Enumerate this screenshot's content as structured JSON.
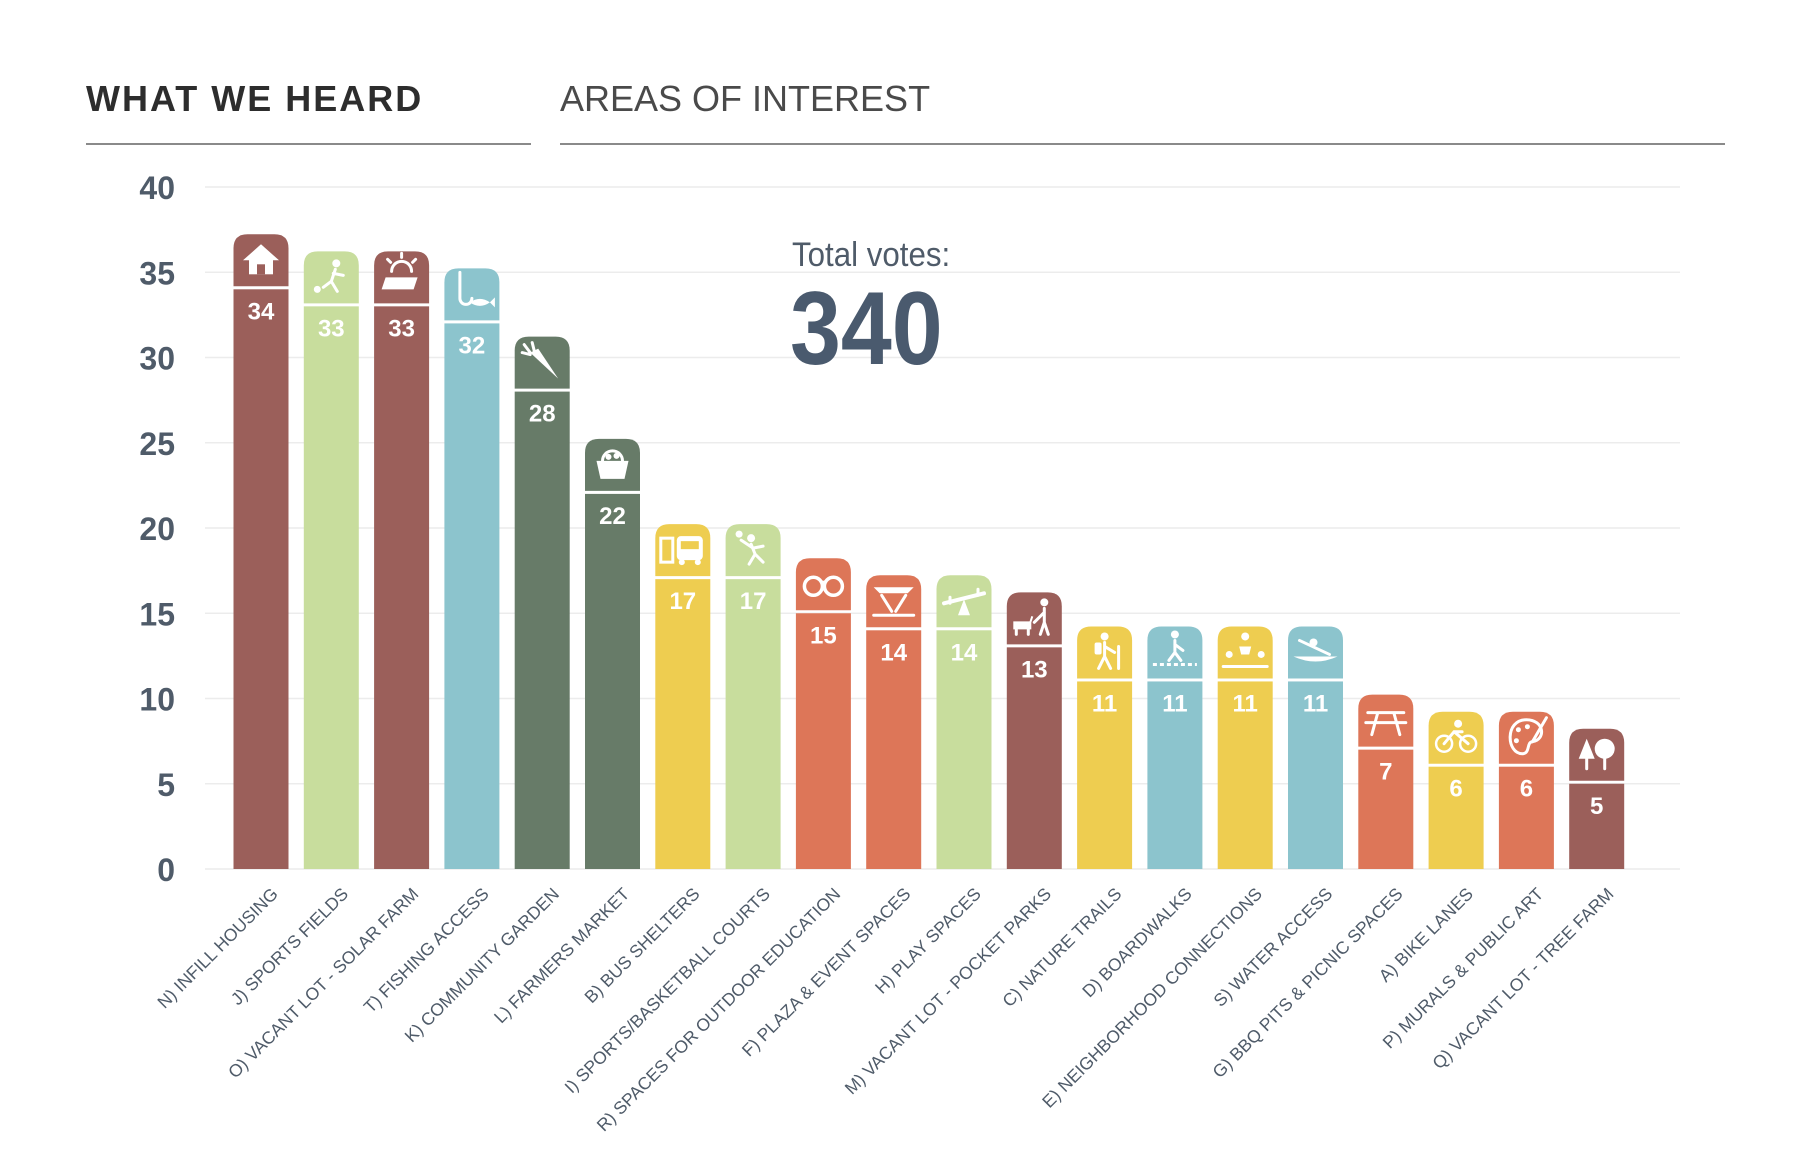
{
  "header": {
    "left_title": "WHAT WE HEARD",
    "right_title": "AREAS OF INTEREST"
  },
  "summary": {
    "total_label": "Total votes:",
    "total_value": "340"
  },
  "colors": {
    "maroon": "#9b5f5a",
    "light_green": "#c8dd9d",
    "blue": "#8cc4cd",
    "dark_green": "#677b68",
    "yellow": "#eecd50",
    "orange": "#dd7658",
    "axis_text": "#4f5b69",
    "grid": "#ececec"
  },
  "chart_data": {
    "type": "bar",
    "title": "AREAS OF INTEREST",
    "xlabel": "",
    "ylabel": "",
    "ylim": [
      0,
      40
    ],
    "yticks": [
      0,
      5,
      10,
      15,
      20,
      25,
      30,
      35,
      40
    ],
    "grid": true,
    "categories": [
      "N) INFILL HOUSING",
      "J) SPORTS FIELDS",
      "O) VACANT LOT - SOLAR FARM",
      "T) FISHING ACCESS",
      "K) COMMUNITY GARDEN",
      "L) FARMERS MARKET",
      "B) BUS SHELTERS",
      "I) SPORTS/BASKETBALL COURTS",
      "R) SPACES FOR OUTDOOR EDUCATION",
      "F) PLAZA & EVENT SPACES",
      "H) PLAY SPACES",
      "M) VACANT LOT - POCKET PARKS",
      "C) NATURE TRAILS",
      "D) BOARDWALKS",
      "E) NEIGHBORHOOD CONNECTIONS",
      "S) WATER ACCESS",
      "G) BBQ PITS & PICNIC SPACES",
      "A) BIKE LANES",
      "P) MURALS & PUBLIC ART",
      "Q) VACANT LOT - TREE FARM"
    ],
    "values": [
      34,
      33,
      33,
      32,
      28,
      22,
      17,
      17,
      15,
      14,
      14,
      13,
      11,
      11,
      11,
      11,
      7,
      6,
      6,
      5
    ],
    "bar_colors": [
      "#9b5f5a",
      "#c8dd9d",
      "#9b5f5a",
      "#8cc4cd",
      "#677b68",
      "#677b68",
      "#eecd50",
      "#c8dd9d",
      "#dd7658",
      "#dd7658",
      "#c8dd9d",
      "#9b5f5a",
      "#eecd50",
      "#8cc4cd",
      "#eecd50",
      "#8cc4cd",
      "#dd7658",
      "#eecd50",
      "#dd7658",
      "#9b5f5a"
    ],
    "icons": [
      "house-icon",
      "soccer-player-icon",
      "solar-panel-icon",
      "fishing-hook-icon",
      "carrot-icon",
      "market-basket-icon",
      "bus-shelter-icon",
      "basketball-player-icon",
      "binoculars-icon",
      "event-stage-icon",
      "seesaw-icon",
      "dog-walker-icon",
      "hiker-icon",
      "boardwalk-walker-icon",
      "connection-people-icon",
      "kayak-icon",
      "picnic-table-icon",
      "bicycle-icon",
      "paint-palette-icon",
      "trees-icon"
    ]
  }
}
